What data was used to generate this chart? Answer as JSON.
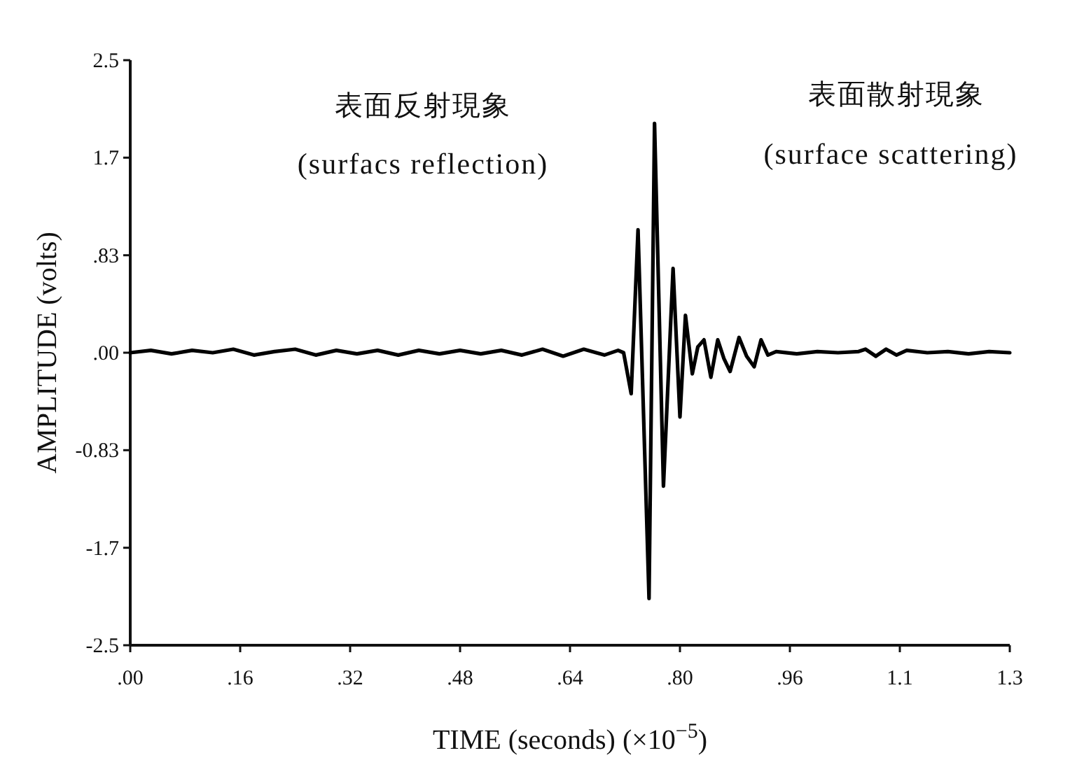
{
  "chart_data": {
    "type": "line",
    "xlabel": "TIME (seconds) (×10$^{−5}$)",
    "ylabel": "AMPLITUDE (volts)",
    "annotations": [
      "表面反射現象",
      "(surfacs reflection)",
      "表面散射現象",
      "(surface scattering)"
    ],
    "xlim": [
      0,
      1.28
    ],
    "ylim": [
      -2.5,
      2.5
    ],
    "xticks": [
      {
        "value": 0,
        "label": ".00"
      },
      {
        "value": 0.16,
        "label": ".16"
      },
      {
        "value": 0.32,
        "label": ".32"
      },
      {
        "value": 0.48,
        "label": ".48"
      },
      {
        "value": 0.64,
        "label": ".64"
      },
      {
        "value": 0.8,
        "label": ".80"
      },
      {
        "value": 0.96,
        "label": ".96"
      },
      {
        "value": 1.12,
        "label": "1.1"
      },
      {
        "value": 1.28,
        "label": "1.3"
      }
    ],
    "yticks": [
      2.5,
      {
        "value": 1.667,
        "label": "1.7"
      },
      {
        "value": 0.833,
        "label": ".83"
      },
      {
        "value": 0,
        "label": ".00"
      },
      {
        "value": -0.833,
        "label": "-0.83"
      },
      {
        "value": -1.667,
        "label": "-1.7"
      },
      -2.5
    ],
    "marker": "none",
    "line_style": "solid",
    "series": [
      {
        "color": "#000000",
        "x": [
          0,
          0.03,
          0.06,
          0.09,
          0.12,
          0.15,
          0.18,
          0.21,
          0.24,
          0.27,
          0.3,
          0.33,
          0.36,
          0.39,
          0.42,
          0.45,
          0.48,
          0.51,
          0.54,
          0.57,
          0.6,
          0.63,
          0.66,
          0.69,
          0.71,
          0.718,
          0.729,
          0.739,
          0.755,
          0.763,
          0.776,
          0.79,
          0.8,
          0.808,
          0.818,
          0.826,
          0.835,
          0.845,
          0.855,
          0.864,
          0.873,
          0.886,
          0.897,
          0.908,
          0.918,
          0.928,
          0.94,
          0.97,
          1.0,
          1.03,
          1.06,
          1.07,
          1.085,
          1.1,
          1.115,
          1.13,
          1.16,
          1.19,
          1.22,
          1.25,
          1.28
        ],
        "values": [
          0,
          0.02,
          -0.01,
          0.02,
          0,
          0.03,
          -0.02,
          0.01,
          0.03,
          -0.02,
          0.02,
          -0.01,
          0.02,
          -0.02,
          0.02,
          -0.01,
          0.02,
          -0.01,
          0.02,
          -0.02,
          0.03,
          -0.03,
          0.03,
          -0.02,
          0.02,
          0,
          -0.35,
          1.05,
          -2.1,
          1.96,
          -1.14,
          0.72,
          -0.55,
          0.32,
          -0.18,
          0.05,
          0.11,
          -0.21,
          0.11,
          -0.05,
          -0.16,
          0.13,
          -0.03,
          -0.12,
          0.11,
          -0.02,
          0.01,
          -0.01,
          0.01,
          0,
          0.01,
          0.03,
          -0.03,
          0.03,
          -0.02,
          0.02,
          0,
          0.01,
          -0.01,
          0.01,
          0
        ]
      }
    ]
  }
}
